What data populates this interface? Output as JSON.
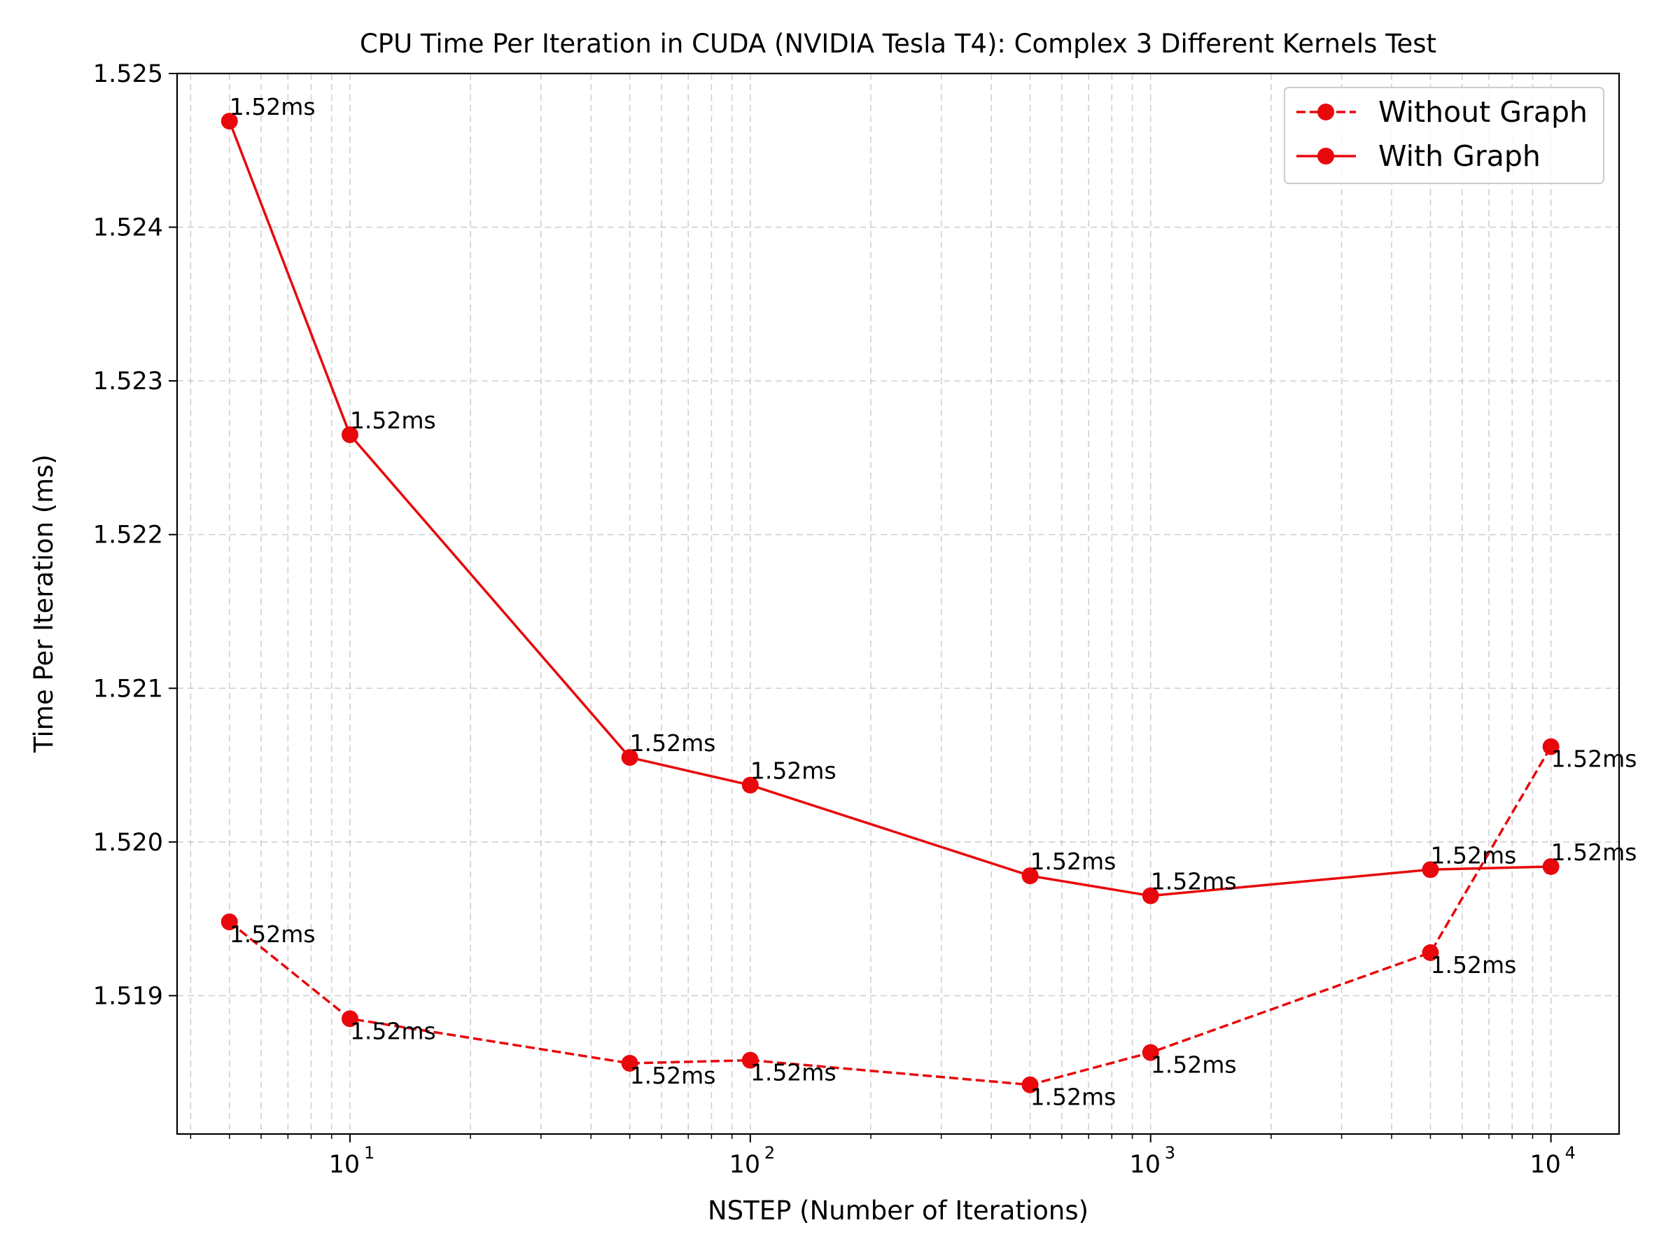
{
  "chart_data": {
    "type": "line",
    "title": "CPU Time Per Iteration in CUDA (NVIDIA Tesla T4): Complex 3 Different Kernels Test",
    "xlabel": "NSTEP (Number of Iterations)",
    "ylabel": "Time Per Iteration (ms)",
    "x_scale": "log",
    "xlim": [
      3.7,
      14800
    ],
    "ylim": [
      1.5181,
      1.525
    ],
    "x_ticks": [
      {
        "value": 10,
        "base": "10",
        "exp": "1"
      },
      {
        "value": 100,
        "base": "10",
        "exp": "2"
      },
      {
        "value": 1000,
        "base": "10",
        "exp": "3"
      },
      {
        "value": 10000,
        "base": "10",
        "exp": "4"
      }
    ],
    "y_ticks": [
      {
        "value": 1.519,
        "label": "1.519"
      },
      {
        "value": 1.52,
        "label": "1.520"
      },
      {
        "value": 1.521,
        "label": "1.521"
      },
      {
        "value": 1.522,
        "label": "1.522"
      },
      {
        "value": 1.523,
        "label": "1.523"
      },
      {
        "value": 1.524,
        "label": "1.524"
      },
      {
        "value": 1.525,
        "label": "1.525"
      }
    ],
    "grid": true,
    "legend_position": "top-right",
    "x": [
      5,
      10,
      50,
      100,
      500,
      1000,
      5000,
      10000
    ],
    "series": [
      {
        "name": "Without Graph",
        "line_style": "dashed",
        "color": "#e8080c",
        "values": [
          1.51948,
          1.51885,
          1.51856,
          1.51858,
          1.51842,
          1.51863,
          1.51928,
          1.52062
        ],
        "labels": [
          "1.52ms",
          "1.52ms",
          "1.52ms",
          "1.52ms",
          "1.52ms",
          "1.52ms",
          "1.52ms",
          "1.52ms"
        ]
      },
      {
        "name": "With Graph",
        "line_style": "solid",
        "color": "#e8080c",
        "values": [
          1.52469,
          1.52265,
          1.52055,
          1.52037,
          1.51978,
          1.51965,
          1.51982,
          1.51984
        ],
        "labels": [
          "1.52ms",
          "1.52ms",
          "1.52ms",
          "1.52ms",
          "1.52ms",
          "1.52ms",
          "1.52ms",
          "1.52ms"
        ]
      }
    ]
  }
}
